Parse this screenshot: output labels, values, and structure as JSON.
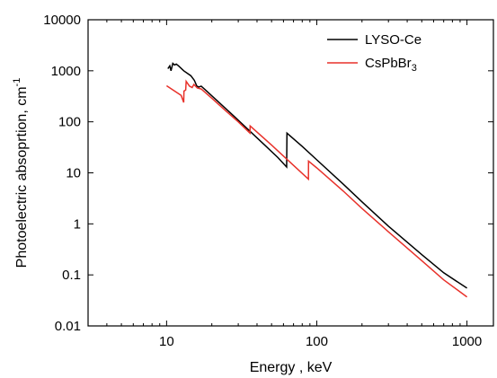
{
  "chart_data": {
    "type": "line",
    "title": "",
    "xlabel": "Energy , keV",
    "ylabel": "Photoelectric absoprtion, cm",
    "ylabel_sup": "-1",
    "x_scale": "log",
    "y_scale": "log",
    "xlim": [
      3,
      1500
    ],
    "ylim": [
      0.01,
      10000
    ],
    "x_ticks": [
      10,
      100,
      1000
    ],
    "x_tick_labels": [
      "10",
      "100",
      "1000"
    ],
    "y_ticks": [
      0.01,
      0.1,
      1,
      10,
      100,
      1000,
      10000
    ],
    "y_tick_labels": [
      "0.01",
      "0.1",
      "1",
      "10",
      "100",
      "1000",
      "10000"
    ],
    "grid": false,
    "legend_position": "top-right",
    "series": [
      {
        "name": "LYSO-Ce",
        "name_base": "LYSO-Ce",
        "name_sub": "",
        "color": "#000000",
        "points": [
          [
            10.2,
            1100
          ],
          [
            10.5,
            1250
          ],
          [
            10.7,
            1000
          ],
          [
            11.0,
            1400
          ],
          [
            11.3,
            1300
          ],
          [
            11.6,
            1350
          ],
          [
            12.0,
            1250
          ],
          [
            13.0,
            1000
          ],
          [
            14.5,
            800
          ],
          [
            15.3,
            650
          ],
          [
            15.9,
            500
          ],
          [
            16.4,
            480
          ],
          [
            17.0,
            500
          ],
          [
            18.0,
            430
          ],
          [
            22.0,
            250
          ],
          [
            28.0,
            130
          ],
          [
            35.0,
            70
          ],
          [
            45.0,
            35
          ],
          [
            55.0,
            20
          ],
          [
            63.0,
            13
          ],
          [
            63.3,
            60
          ],
          [
            80.0,
            33
          ],
          [
            100.0,
            18
          ],
          [
            150.0,
            6
          ],
          [
            200.0,
            2.7
          ],
          [
            300.0,
            0.9
          ],
          [
            500.0,
            0.25
          ],
          [
            700.0,
            0.11
          ],
          [
            1000.0,
            0.055
          ]
        ]
      },
      {
        "name": "CsPbBr3",
        "name_base": "CsPbBr",
        "name_sub": "3",
        "color": "#e8312a",
        "points": [
          [
            10.0,
            510
          ],
          [
            12.5,
            330
          ],
          [
            13.0,
            240
          ],
          [
            13.05,
            400
          ],
          [
            13.4,
            420
          ],
          [
            13.5,
            620
          ],
          [
            14.2,
            500
          ],
          [
            14.8,
            470
          ],
          [
            15.2,
            540
          ],
          [
            16.0,
            460
          ],
          [
            17.0,
            440
          ],
          [
            20.0,
            290
          ],
          [
            25.0,
            160
          ],
          [
            30.0,
            100
          ],
          [
            35.9,
            60
          ],
          [
            36.0,
            83
          ],
          [
            50.0,
            35
          ],
          [
            70.0,
            14
          ],
          [
            88.0,
            7.5
          ],
          [
            88.1,
            17
          ],
          [
            100.0,
            12.5
          ],
          [
            150.0,
            4.4
          ],
          [
            200.0,
            2.0
          ],
          [
            300.0,
            0.7
          ],
          [
            500.0,
            0.19
          ],
          [
            700.0,
            0.08
          ],
          [
            1000.0,
            0.037
          ]
        ]
      }
    ]
  }
}
